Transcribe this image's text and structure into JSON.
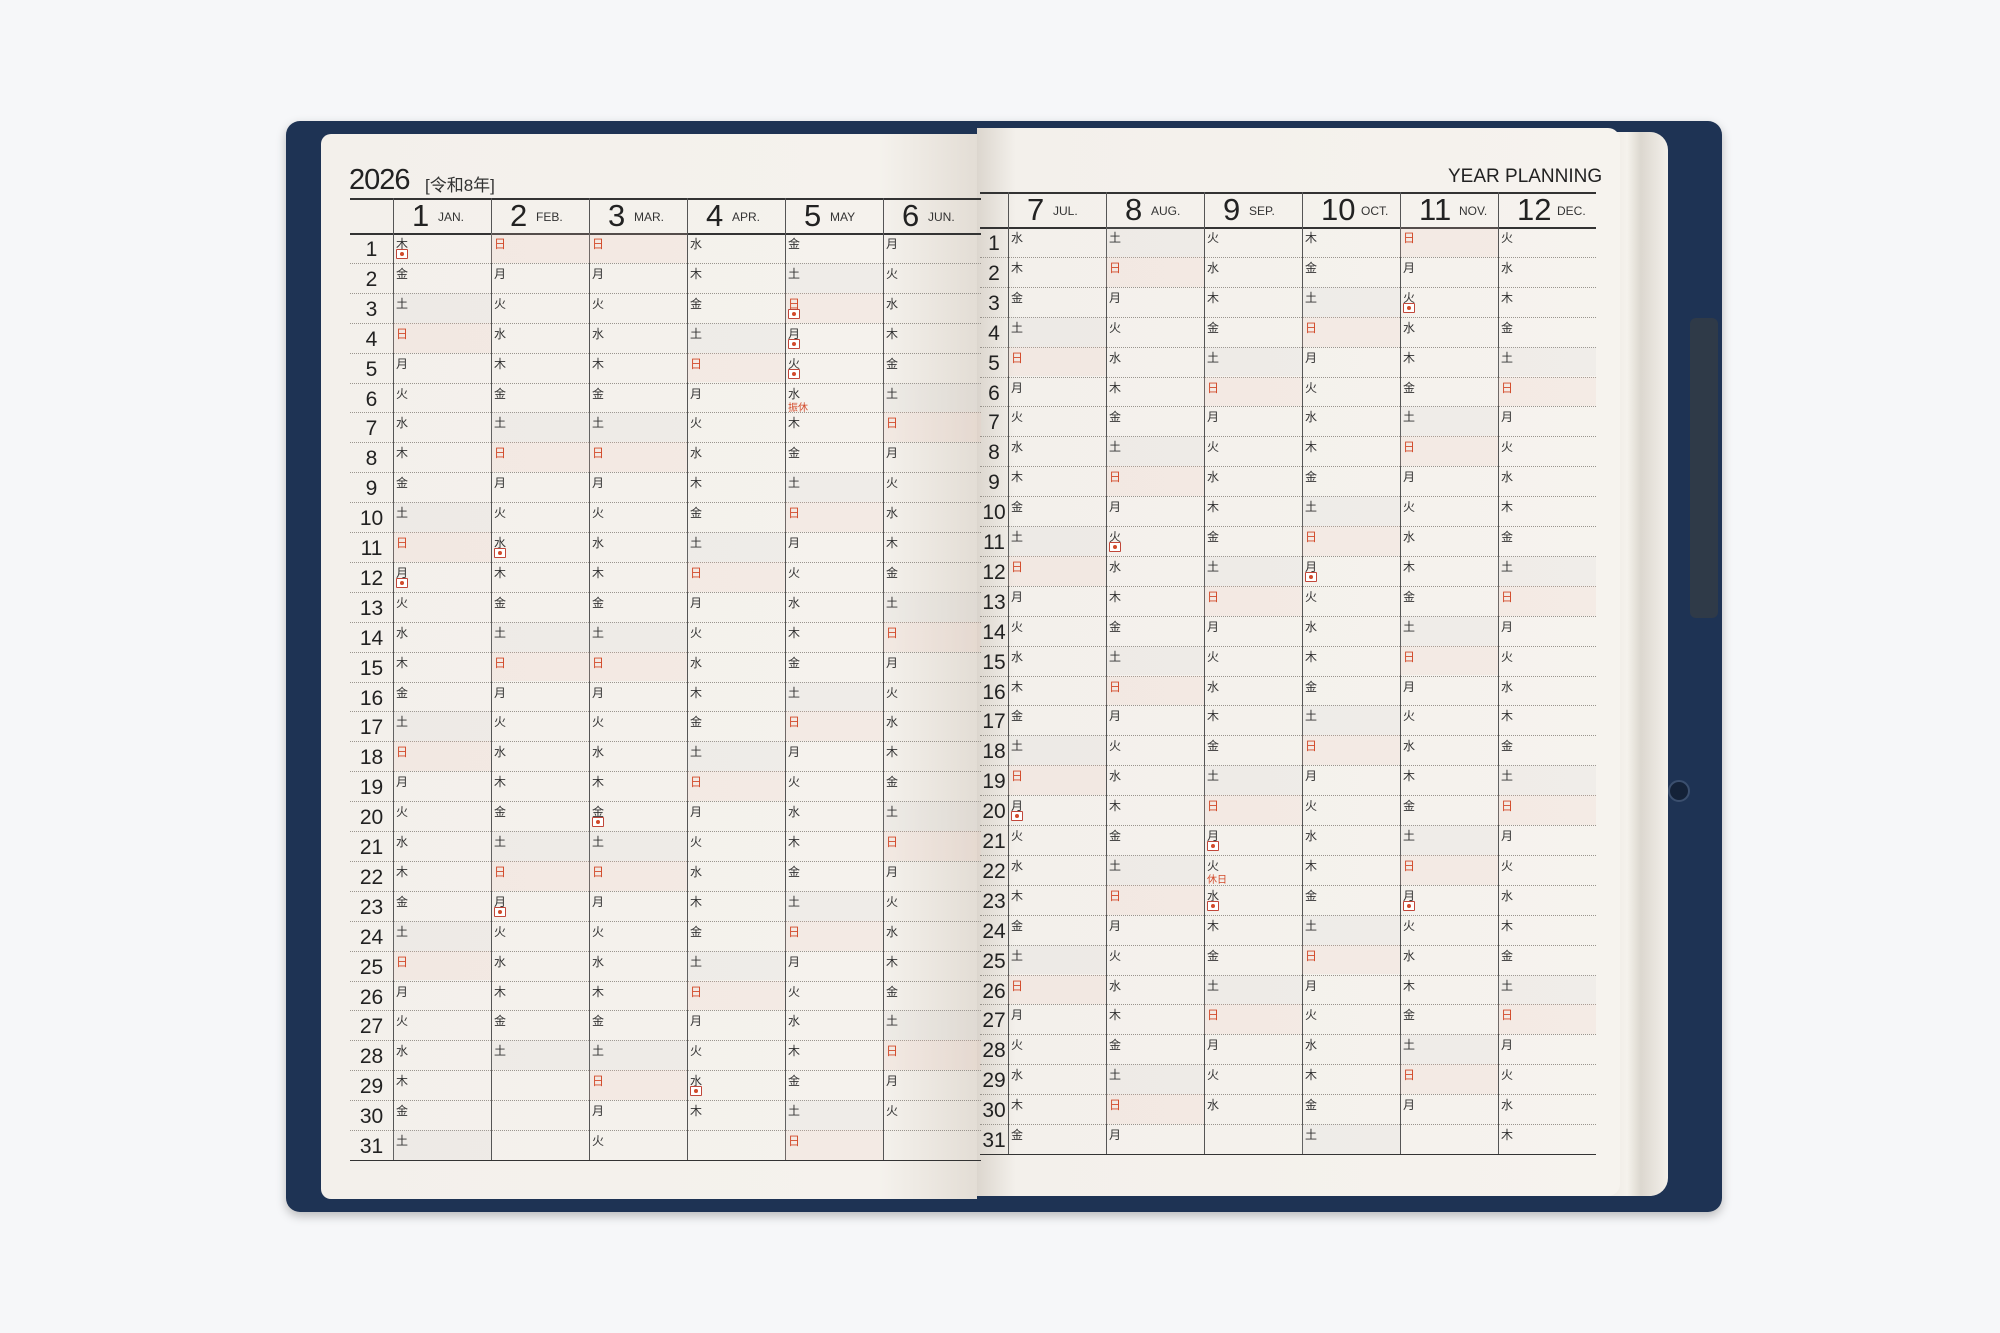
{
  "header": {
    "year": "2026",
    "era": "[令和8年]",
    "title": "YEAR PLANNING"
  },
  "day_numbers": [
    "1",
    "2",
    "3",
    "4",
    "5",
    "6",
    "7",
    "8",
    "9",
    "10",
    "11",
    "12",
    "13",
    "14",
    "15",
    "16",
    "17",
    "18",
    "19",
    "20",
    "21",
    "22",
    "23",
    "24",
    "25",
    "26",
    "27",
    "28",
    "29",
    "30",
    "31"
  ],
  "sunday_char": "日",
  "colors": {
    "cover": "#1e3354",
    "page": "#f4f1ec",
    "sunday": "#d24a2a",
    "text": "#222222"
  },
  "months": [
    {
      "num": "1",
      "en": "JAN.",
      "weekdays": "木金土日月火水木金土日月火水木金土日月火水木金土日月火水木金土"
    },
    {
      "num": "2",
      "en": "FEB.",
      "weekdays": "日月火水木金土日月火水木金土日月火水木金土日月火水木金土"
    },
    {
      "num": "3",
      "en": "MAR.",
      "weekdays": "日月火水木金土日月火水木金土日月火水木金土日月火水木金土日月火"
    },
    {
      "num": "4",
      "en": "APR.",
      "weekdays": "水木金土日月火水木金土日月火水木金土日月火水木金土日月火水木"
    },
    {
      "num": "5",
      "en": "MAY",
      "weekdays": "金土日月火水木金土日月火水木金土日月火水木金土日月火水木金土日"
    },
    {
      "num": "6",
      "en": "JUN.",
      "weekdays": "月火水木金土日月火水木金土日月火水木金土日月火水木金土日月火"
    },
    {
      "num": "7",
      "en": "JUL.",
      "weekdays": "水木金土日月火水木金土日月火水木金土日月火水木金土日月火水木金"
    },
    {
      "num": "8",
      "en": "AUG.",
      "weekdays": "土日月火水木金土日月火水木金土日月火水木金土日月火水木金土日月"
    },
    {
      "num": "9",
      "en": "SEP.",
      "weekdays": "火水木金土日月火水木金土日月火水木金土日月火水木金土日月火水"
    },
    {
      "num": "10",
      "en": "OCT.",
      "weekdays": "木金土日月火水木金土日月火水木金土日月火水木金土日月火水木金土"
    },
    {
      "num": "11",
      "en": "NOV.",
      "weekdays": "日月火水木金土日月火水木金土日月火水木金土日月火水木金土日月"
    },
    {
      "num": "12",
      "en": "DEC.",
      "weekdays": "火水木金土日月火水木金土日月火水木金土日月火水木金土日月火水木"
    }
  ],
  "holidays": [
    {
      "month": 1,
      "day": 1,
      "mark": "flag-icon"
    },
    {
      "month": 1,
      "day": 12,
      "mark": "flag-icon"
    },
    {
      "month": 2,
      "day": 11,
      "mark": "flag-icon"
    },
    {
      "month": 2,
      "day": 23,
      "mark": "flag-icon"
    },
    {
      "month": 3,
      "day": 20,
      "mark": "flag-icon"
    },
    {
      "month": 4,
      "day": 29,
      "mark": "flag-icon"
    },
    {
      "month": 5,
      "day": 3,
      "mark": "flag-icon"
    },
    {
      "month": 5,
      "day": 4,
      "mark": "flag-icon"
    },
    {
      "month": 5,
      "day": 5,
      "mark": "flag-icon"
    },
    {
      "month": 5,
      "day": 6,
      "label": "振休"
    },
    {
      "month": 7,
      "day": 20,
      "mark": "flag-icon"
    },
    {
      "month": 8,
      "day": 11,
      "mark": "flag-icon"
    },
    {
      "month": 9,
      "day": 21,
      "mark": "flag-icon"
    },
    {
      "month": 9,
      "day": 22,
      "label": "休日"
    },
    {
      "month": 9,
      "day": 23,
      "mark": "flag-icon"
    },
    {
      "month": 10,
      "day": 12,
      "mark": "flag-icon"
    },
    {
      "month": 11,
      "day": 3,
      "mark": "flag-icon"
    },
    {
      "month": 11,
      "day": 23,
      "mark": "flag-icon"
    }
  ]
}
